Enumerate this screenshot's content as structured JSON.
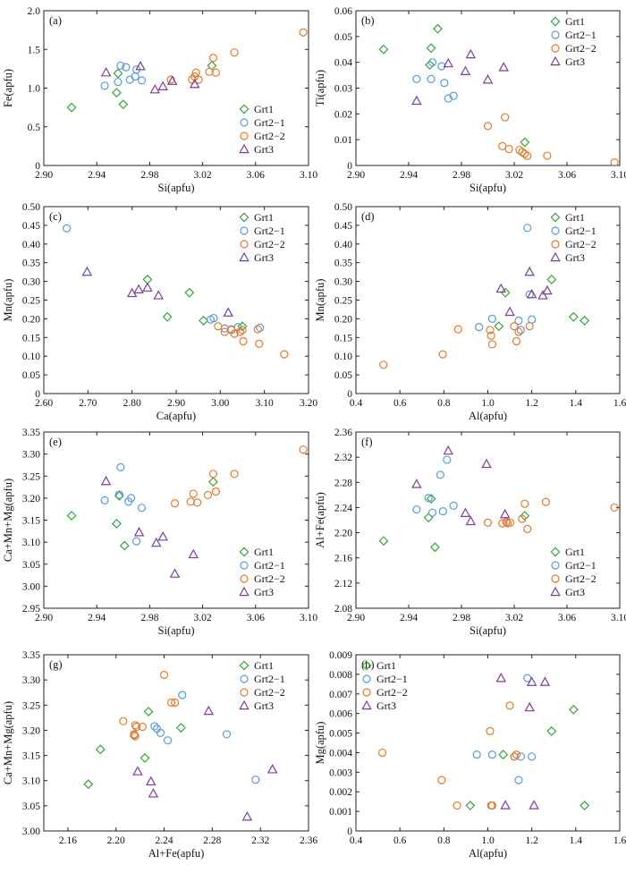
{
  "series_styles": [
    {
      "name": "Grt1",
      "marker": "diamond",
      "color": "#3aa33a"
    },
    {
      "name": "Grt2-1",
      "marker": "circle",
      "color": "#5b9bd5"
    },
    {
      "name": "Grt2-2",
      "marker": "circle",
      "color": "#e07a2e"
    },
    {
      "name": "Grt3",
      "marker": "triangle",
      "color": "#7b3f99"
    }
  ],
  "chart_data": [
    {
      "id": "a",
      "tag": "(a)",
      "type": "scatter",
      "xlabel": "Si(apfu)",
      "ylabel": "Fe(apfu)",
      "xlim": [
        2.9,
        3.1
      ],
      "ylim": [
        0.0,
        2.0
      ],
      "xticks": [
        "2.90",
        "2.94",
        "2.98",
        "3.02",
        "3.06",
        "3.10"
      ],
      "yticks": [
        "0",
        "0.5",
        "1.0",
        "1.5",
        "2.0"
      ],
      "legend": "bottom-right",
      "series": [
        {
          "name": "Grt1",
          "x": [
            2.921,
            2.955,
            2.96,
            2.956,
            3.027
          ],
          "y": [
            0.75,
            0.94,
            0.79,
            1.19,
            1.29
          ]
        },
        {
          "name": "Grt2-1",
          "x": [
            2.946,
            2.956,
            2.958,
            2.962,
            2.965,
            2.969,
            2.97,
            2.974
          ],
          "y": [
            1.03,
            1.08,
            1.29,
            1.27,
            1.11,
            1.15,
            1.24,
            1.1
          ]
        },
        {
          "name": "Grt2-2",
          "x": [
            2.996,
            3.012,
            3.014,
            3.015,
            3.017,
            3.025,
            3.028,
            3.03,
            3.044,
            3.096
          ],
          "y": [
            1.11,
            1.11,
            1.15,
            1.2,
            1.11,
            1.21,
            1.39,
            1.2,
            1.46,
            1.72
          ]
        },
        {
          "name": "Grt3",
          "x": [
            2.947,
            2.973,
            2.984,
            2.99,
            2.997,
            3.014
          ],
          "y": [
            1.2,
            1.28,
            0.98,
            1.02,
            1.09,
            1.05
          ]
        }
      ]
    },
    {
      "id": "b",
      "tag": "(b)",
      "type": "scatter",
      "xlabel": "Si(apfu)",
      "ylabel": "Ti(apfu)",
      "xlim": [
        2.9,
        3.1
      ],
      "ylim": [
        0.0,
        0.06
      ],
      "xticks": [
        "2.90",
        "2.94",
        "2.98",
        "3.02",
        "3.06",
        "3.10"
      ],
      "yticks": [
        "0",
        "0.01",
        "0.02",
        "0.03",
        "0.04",
        "0.05",
        "0.06"
      ],
      "legend": "top-right",
      "series": [
        {
          "name": "Grt1",
          "x": [
            2.921,
            2.956,
            2.957,
            2.962,
            3.028
          ],
          "y": [
            0.045,
            0.039,
            0.0455,
            0.053,
            0.009
          ]
        },
        {
          "name": "Grt2-1",
          "x": [
            2.946,
            2.957,
            2.958,
            2.965,
            2.967,
            2.97,
            2.974
          ],
          "y": [
            0.0335,
            0.0335,
            0.04,
            0.0385,
            0.032,
            0.026,
            0.027
          ]
        },
        {
          "name": "Grt2-2",
          "x": [
            3.0,
            3.011,
            3.013,
            3.016,
            3.024,
            3.026,
            3.028,
            3.03,
            3.045,
            3.096
          ],
          "y": [
            0.0153,
            0.0075,
            0.0187,
            0.0064,
            0.006,
            0.0052,
            0.0045,
            0.0037,
            0.0038,
            0.0012
          ]
        },
        {
          "name": "Grt3",
          "x": [
            2.946,
            2.97,
            2.983,
            2.987,
            3.0,
            3.012
          ],
          "y": [
            0.025,
            0.0395,
            0.0365,
            0.043,
            0.0332,
            0.038
          ]
        }
      ]
    },
    {
      "id": "c",
      "tag": "(c)",
      "type": "scatter",
      "xlabel": "Ca(apfu)",
      "ylabel": "Mn(apfu)",
      "xlim": [
        2.6,
        3.2
      ],
      "ylim": [
        0.0,
        0.5
      ],
      "xticks": [
        "2.60",
        "2.70",
        "2.80",
        "2.90",
        "3.00",
        "3.10",
        "3.20"
      ],
      "yticks": [
        "0",
        "0.05",
        "0.10",
        "0.15",
        "0.20",
        "0.25",
        "0.30",
        "0.35",
        "0.40",
        "0.45",
        "0.50"
      ],
      "legend": "top-right",
      "series": [
        {
          "name": "Grt1",
          "x": [
            2.835,
            2.88,
            2.93,
            2.962,
            3.05
          ],
          "y": [
            0.305,
            0.205,
            0.27,
            0.195,
            0.18
          ]
        },
        {
          "name": "Grt2-1",
          "x": [
            2.652,
            2.978,
            2.985,
            3.01,
            3.025,
            3.04,
            3.09
          ],
          "y": [
            0.442,
            0.198,
            0.202,
            0.174,
            0.17,
            0.178,
            0.176
          ]
        },
        {
          "name": "Grt2-2",
          "x": [
            2.995,
            3.01,
            3.025,
            3.032,
            3.045,
            3.05,
            3.052,
            3.085,
            3.088,
            3.145
          ],
          "y": [
            0.18,
            0.165,
            0.172,
            0.16,
            0.165,
            0.17,
            0.14,
            0.172,
            0.133,
            0.105
          ]
        },
        {
          "name": "Grt3",
          "x": [
            2.698,
            2.8,
            2.815,
            2.835,
            2.86,
            3.018
          ],
          "y": [
            0.325,
            0.268,
            0.278,
            0.283,
            0.262,
            0.216
          ]
        }
      ]
    },
    {
      "id": "d",
      "tag": "(d)",
      "type": "scatter",
      "xlabel": "Al(apfu)",
      "ylabel": "Mn(apfu)",
      "xlim": [
        0.4,
        1.6
      ],
      "ylim": [
        0.0,
        0.5
      ],
      "xticks": [
        "0.4",
        "0.6",
        "0.8",
        "1.0",
        "1.2",
        "1.4",
        "1.6"
      ],
      "yticks": [
        "0",
        "0.05",
        "0.10",
        "0.15",
        "0.20",
        "0.25",
        "0.30",
        "0.35",
        "0.40",
        "0.45",
        "0.50"
      ],
      "legend": "top-right",
      "series": [
        {
          "name": "Grt1",
          "x": [
            1.05,
            1.08,
            1.29,
            1.39,
            1.44
          ],
          "y": [
            0.18,
            0.27,
            0.305,
            0.205,
            0.195
          ]
        },
        {
          "name": "Grt2-1",
          "x": [
            0.96,
            1.02,
            1.14,
            1.15,
            1.18,
            1.19,
            1.2
          ],
          "y": [
            0.178,
            0.2,
            0.195,
            0.17,
            0.443,
            0.265,
            0.198
          ]
        },
        {
          "name": "Grt2-2",
          "x": [
            0.525,
            0.795,
            0.865,
            1.01,
            1.015,
            1.02,
            1.12,
            1.13,
            1.14,
            1.19
          ],
          "y": [
            0.077,
            0.105,
            0.172,
            0.17,
            0.155,
            0.132,
            0.18,
            0.14,
            0.165,
            0.18
          ]
        },
        {
          "name": "Grt3",
          "x": [
            1.06,
            1.1,
            1.19,
            1.2,
            1.25,
            1.27
          ],
          "y": [
            0.28,
            0.218,
            0.325,
            0.265,
            0.262,
            0.275
          ]
        }
      ]
    },
    {
      "id": "e",
      "tag": "(e)",
      "type": "scatter",
      "xlabel": "Si(apfu)",
      "ylabel": "Ca+Mn+Mg(apfu)",
      "xlim": [
        2.9,
        3.1
      ],
      "ylim": [
        2.95,
        3.35
      ],
      "xticks": [
        "2.90",
        "2.94",
        "2.98",
        "3.02",
        "3.06",
        "3.10"
      ],
      "yticks": [
        "2.95",
        "3.00",
        "3.05",
        "3.10",
        "3.15",
        "3.20",
        "3.25",
        "3.30",
        "3.35"
      ],
      "legend": "bottom-right",
      "series": [
        {
          "name": "Grt1",
          "x": [
            2.921,
            2.955,
            2.957,
            2.961,
            3.028
          ],
          "y": [
            3.16,
            3.142,
            3.205,
            3.092,
            3.237
          ]
        },
        {
          "name": "Grt2-1",
          "x": [
            2.946,
            2.957,
            2.958,
            2.964,
            2.966,
            2.97,
            2.974
          ],
          "y": [
            3.195,
            3.208,
            3.27,
            3.192,
            3.2,
            3.102,
            3.178
          ]
        },
        {
          "name": "Grt2-2",
          "x": [
            2.999,
            3.011,
            3.013,
            3.016,
            3.024,
            3.028,
            3.03,
            3.044,
            3.096
          ],
          "y": [
            3.188,
            3.192,
            3.21,
            3.19,
            3.207,
            3.255,
            3.215,
            3.255,
            3.31
          ]
        },
        {
          "name": "Grt3",
          "x": [
            2.947,
            2.972,
            2.985,
            2.99,
            2.999,
            3.013
          ],
          "y": [
            3.238,
            3.122,
            3.098,
            3.112,
            3.028,
            3.072
          ]
        }
      ]
    },
    {
      "id": "f",
      "tag": "(f)",
      "type": "scatter",
      "xlabel": "Si(apfu)",
      "ylabel": "Al+Fe(apfu)",
      "xlim": [
        2.9,
        3.1
      ],
      "ylim": [
        2.08,
        2.36
      ],
      "xticks": [
        "2.90",
        "2.94",
        "2.98",
        "3.02",
        "3.06",
        "3.10"
      ],
      "yticks": [
        "2.08",
        "2.12",
        "2.16",
        "2.20",
        "2.24",
        "2.28",
        "2.32",
        "2.36"
      ],
      "legend": "bottom-right",
      "series": [
        {
          "name": "Grt1",
          "x": [
            2.921,
            2.955,
            2.957,
            2.96,
            3.028
          ],
          "y": [
            2.187,
            2.224,
            2.254,
            2.177,
            2.227
          ]
        },
        {
          "name": "Grt2-1",
          "x": [
            2.946,
            2.955,
            2.958,
            2.964,
            2.966,
            2.969,
            2.974
          ],
          "y": [
            2.237,
            2.255,
            2.232,
            2.292,
            2.234,
            2.316,
            2.243
          ]
        },
        {
          "name": "Grt2-2",
          "x": [
            3.0,
            3.011,
            3.014,
            3.015,
            3.017,
            3.026,
            3.028,
            3.03,
            3.044,
            3.096
          ],
          "y": [
            2.216,
            2.215,
            2.217,
            2.215,
            2.216,
            2.222,
            2.246,
            2.206,
            2.249,
            2.24
          ]
        },
        {
          "name": "Grt3",
          "x": [
            2.946,
            2.97,
            2.983,
            2.987,
            2.999,
            3.013
          ],
          "y": [
            2.277,
            2.33,
            2.231,
            2.218,
            2.309,
            2.229
          ]
        }
      ]
    },
    {
      "id": "g",
      "tag": "(g)",
      "type": "scatter",
      "xlabel": "Al+Fe(apfu)",
      "ylabel": "Ca+Mn+Mg(apfu)",
      "xlim": [
        2.14,
        2.36
      ],
      "ylim": [
        3.0,
        3.35
      ],
      "xticks": [
        "2.16",
        "2.20",
        "2.24",
        "2.28",
        "2.32",
        "2.36"
      ],
      "yticks": [
        "3.00",
        "3.05",
        "3.10",
        "3.15",
        "3.20",
        "3.25",
        "3.30",
        "3.35"
      ],
      "legend": "top-right",
      "series": [
        {
          "name": "Grt1",
          "x": [
            2.177,
            2.187,
            2.224,
            2.227,
            2.254
          ],
          "y": [
            3.093,
            3.162,
            3.145,
            3.237,
            3.205
          ]
        },
        {
          "name": "Grt2-1",
          "x": [
            2.232,
            2.234,
            2.237,
            2.243,
            2.255,
            2.292,
            2.316
          ],
          "y": [
            3.208,
            3.203,
            3.195,
            3.18,
            3.27,
            3.192,
            3.102
          ]
        },
        {
          "name": "Grt2-2",
          "x": [
            2.206,
            2.215,
            2.215,
            2.216,
            2.216,
            2.217,
            2.222,
            2.24,
            2.246,
            2.249
          ],
          "y": [
            3.218,
            3.19,
            3.192,
            3.21,
            3.188,
            3.207,
            3.207,
            3.31,
            3.255,
            3.255
          ]
        },
        {
          "name": "Grt3",
          "x": [
            2.218,
            2.229,
            2.231,
            2.277,
            2.309,
            2.33
          ],
          "y": [
            3.118,
            3.098,
            3.074,
            3.238,
            3.028,
            3.122
          ]
        }
      ]
    },
    {
      "id": "h",
      "tag": "(h)",
      "type": "scatter",
      "xlabel": "Al(apfu)",
      "ylabel": "Mg(apfu)",
      "xlim": [
        0.4,
        1.6
      ],
      "ylim": [
        0.0,
        0.009
      ],
      "xticks": [
        "0.4",
        "0.6",
        "0.8",
        "1.0",
        "1.2",
        "1.4",
        "1.6"
      ],
      "yticks": [
        "0",
        "0.001",
        "0.002",
        "0.003",
        "0.004",
        "0.005",
        "0.006",
        "0.007",
        "0.008",
        "0.009"
      ],
      "legend": "top-left",
      "series": [
        {
          "name": "Grt1",
          "x": [
            0.92,
            1.07,
            1.29,
            1.39,
            1.44
          ],
          "y": [
            0.0013,
            0.0039,
            0.0051,
            0.0062,
            0.0013
          ]
        },
        {
          "name": "Grt2-1",
          "x": [
            0.95,
            1.02,
            1.12,
            1.14,
            1.15,
            1.18,
            1.2
          ],
          "y": [
            0.0039,
            0.0039,
            0.0038,
            0.0026,
            0.0038,
            0.0078,
            0.0038
          ]
        },
        {
          "name": "Grt2-2",
          "x": [
            0.52,
            0.79,
            0.86,
            1.01,
            1.015,
            1.02,
            1.1,
            1.12,
            1.13
          ],
          "y": [
            0.004,
            0.0026,
            0.0013,
            0.0051,
            0.0013,
            0.0013,
            0.0064,
            0.0038,
            0.0039
          ]
        },
        {
          "name": "Grt3",
          "x": [
            1.06,
            1.08,
            1.19,
            1.2,
            1.21,
            1.26
          ],
          "y": [
            0.0078,
            0.0013,
            0.0063,
            0.0076,
            0.0013,
            0.0076
          ]
        }
      ]
    }
  ]
}
